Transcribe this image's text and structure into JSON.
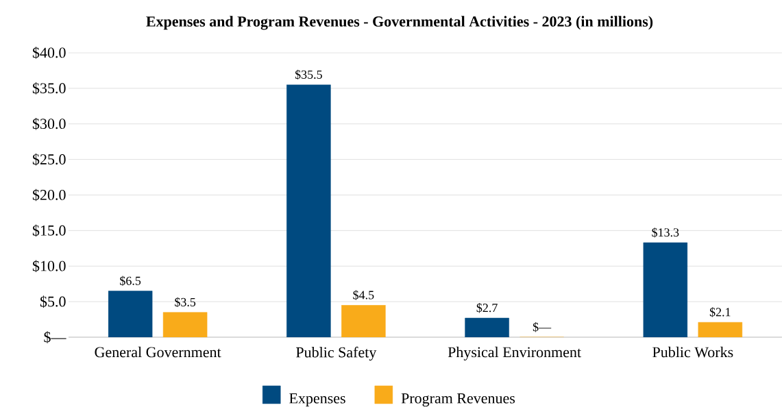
{
  "chart_data": {
    "type": "bar",
    "title": "Expenses and Program Revenues - Governmental Activities - 2023 (in millions)",
    "categories": [
      "General Government",
      "Public Safety",
      "Physical Environment",
      "Public Works"
    ],
    "series": [
      {
        "name": "Expenses",
        "color": "#004a80",
        "values": [
          6.5,
          35.5,
          2.7,
          13.3
        ],
        "value_labels": [
          "$6.5",
          "$35.5",
          "$2.7",
          "$13.3"
        ]
      },
      {
        "name": "Program Revenues",
        "color": "#f9ab1a",
        "values": [
          3.5,
          4.5,
          0,
          2.1
        ],
        "value_labels": [
          "$3.5",
          "$4.5",
          "$—",
          "$2.1"
        ]
      }
    ],
    "ylim": [
      0,
      40
    ],
    "yticks": [
      {
        "value": 0,
        "label": "$—"
      },
      {
        "value": 5,
        "label": "$5.0"
      },
      {
        "value": 10,
        "label": "$10.0"
      },
      {
        "value": 15,
        "label": "$15.0"
      },
      {
        "value": 20,
        "label": "$20.0"
      },
      {
        "value": 25,
        "label": "$25.0"
      },
      {
        "value": 30,
        "label": "$30.0"
      },
      {
        "value": 35,
        "label": "$35.0"
      },
      {
        "value": 40,
        "label": "$40.0"
      }
    ],
    "grid": "y",
    "legend": "bottom"
  }
}
